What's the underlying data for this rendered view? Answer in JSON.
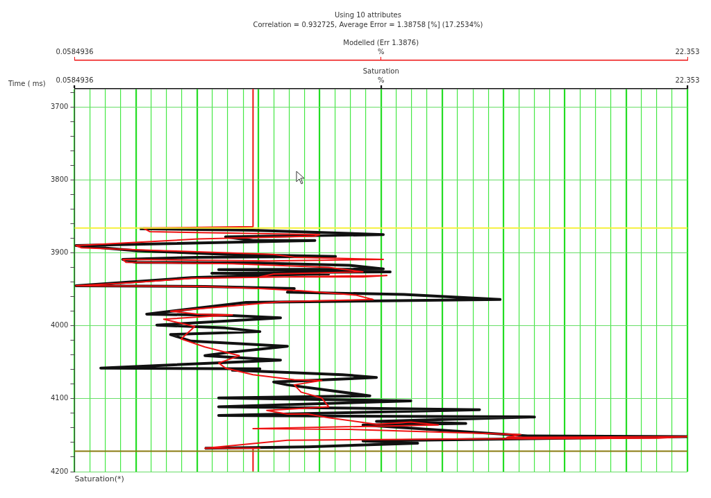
{
  "chart_data": {
    "type": "line",
    "title": "Using 10 attributes",
    "subtitle": "Correlation = 0.932725, Average Error = 1.38758 [%] (17.2534%)",
    "xlabel": "Saturation",
    "ylabel": "Time ( ms)",
    "x2label": "Modelled (Err 1.3876)",
    "annotations": [
      "Saturation(*)"
    ],
    "xlim": [
      0.0584936,
      22.353
    ],
    "x2lim": [
      0.0584936,
      22.353
    ],
    "xticks": [
      0.0584936,
      {
        "value": 0.616,
        "label": null
      },
      {
        "value": 1.173,
        "label": null
      },
      {
        "value": 1.731,
        "label": null
      },
      {
        "value": 2.288,
        "label": null
      },
      {
        "value": 2.845,
        "label": null
      },
      {
        "value": 3.403,
        "label": null
      },
      {
        "value": 3.96,
        "label": null
      },
      {
        "value": 4.518,
        "label": null
      },
      {
        "value": 5.075,
        "label": null
      },
      {
        "value": 5.632,
        "label": null
      },
      {
        "value": 6.19,
        "label": null
      },
      {
        "value": 6.747,
        "label": null
      },
      {
        "value": 7.304,
        "label": null
      },
      {
        "value": 7.862,
        "label": null
      },
      {
        "value": 8.419,
        "label": null
      },
      {
        "value": 8.977,
        "label": null
      },
      {
        "value": 9.534,
        "label": null
      },
      {
        "value": 10.091,
        "label": null
      },
      {
        "value": 10.649,
        "label": null
      },
      {
        "value": 11.206,
        "label": "%"
      },
      {
        "value": 11.763,
        "label": null
      },
      {
        "value": 12.321,
        "label": null
      },
      {
        "value": 12.878,
        "label": null
      },
      {
        "value": 13.436,
        "label": null
      },
      {
        "value": 13.993,
        "label": null
      },
      {
        "value": 14.55,
        "label": null
      },
      {
        "value": 15.108,
        "label": null
      },
      {
        "value": 15.665,
        "label": null
      },
      {
        "value": 16.222,
        "label": null
      },
      {
        "value": 16.78,
        "label": null
      },
      {
        "value": 17.337,
        "label": null
      },
      {
        "value": 17.895,
        "label": null
      },
      {
        "value": 18.452,
        "label": null
      },
      {
        "value": 19.009,
        "label": null
      },
      {
        "value": 19.567,
        "label": null
      },
      {
        "value": 20.124,
        "label": null
      },
      {
        "value": 20.681,
        "label": null
      },
      {
        "value": 21.239,
        "label": null
      },
      {
        "value": 21.796,
        "label": null
      },
      22.353
    ],
    "x2ticks": [
      0.0584936,
      {
        "value": 11.206,
        "label": "%"
      },
      22.353
    ],
    "ylim": [
      4200,
      3675
    ],
    "yticks": [
      {
        "value": 3680,
        "label": null
      },
      3700,
      {
        "value": 3720,
        "label": null
      },
      {
        "value": 3740,
        "label": null
      },
      {
        "value": 3760,
        "label": null
      },
      {
        "value": 3780,
        "label": null
      },
      3800,
      {
        "value": 3820,
        "label": null
      },
      {
        "value": 3840,
        "label": null
      },
      {
        "value": 3860,
        "label": null
      },
      {
        "value": 3880,
        "label": null
      },
      3900,
      {
        "value": 3920,
        "label": null
      },
      {
        "value": 3940,
        "label": null
      },
      {
        "value": 3960,
        "label": null
      },
      {
        "value": 3980,
        "label": null
      },
      4000,
      {
        "value": 4020,
        "label": null
      },
      {
        "value": 4040,
        "label": null
      },
      {
        "value": 4060,
        "label": null
      },
      {
        "value": 4080,
        "label": null
      },
      4100,
      {
        "value": 4120,
        "label": null
      },
      {
        "value": 4140,
        "label": null
      },
      {
        "value": 4160,
        "label": null
      },
      {
        "value": 4180,
        "label": null
      },
      4200
    ],
    "grid": true,
    "ref_lines": [
      {
        "axis": "y",
        "value": 3866,
        "color": "#f5f03a"
      },
      {
        "axis": "y",
        "value": 4172,
        "color": "#8a7a10"
      }
    ],
    "series": [
      {
        "color": "#111111",
        "x": [
          2.43,
          6.55,
          11.29,
          5.55,
          6.55,
          8.8,
          0.11,
          2.31,
          5.55,
          9.55,
          4.55,
          1.81,
          2.31,
          6.8,
          10.05,
          11.29,
          5.3,
          11.54,
          5.05,
          9.3,
          7.8,
          4.3,
          0.11,
          4.8,
          8.05,
          7.8,
          12.04,
          15.54,
          6.3,
          2.68,
          5.8,
          7.55,
          3.05,
          5.55,
          6.8,
          3.55,
          4.3,
          7.8,
          5.55,
          4.8,
          7.55,
          1.01,
          6.8,
          5.8,
          9.8,
          11.04,
          7.3,
          7.8,
          10.8,
          5.3,
          12.29,
          5.3,
          14.79,
          5.3,
          16.79,
          11.04,
          14.29,
          10.55,
          15.79,
          16.54,
          22.35,
          10.55,
          12.54,
          8.55,
          4.8
        ],
        "values": [
          3867,
          3869,
          3875,
          3878,
          3883,
          3883,
          3890,
          3897,
          3902,
          3905,
          3906,
          3909,
          3913,
          3914,
          3917,
          3922,
          3923,
          3926,
          3928,
          3929,
          3930,
          3934,
          3945,
          3946,
          3949,
          3954,
          3957,
          3964,
          3968,
          3984,
          3986,
          3989,
          3999,
          4003,
          4008,
          4012,
          4021,
          4028,
          4037,
          4041,
          4047,
          4058,
          4059,
          4061,
          4067,
          4071,
          4077,
          4081,
          4096,
          4099,
          4103,
          4111,
          4115,
          4123,
          4125,
          4131,
          4134,
          4136,
          4149,
          4151,
          4152,
          4158,
          4161,
          4166,
          4168
        ]
      },
      {
        "color": "#ee1111",
        "axis": "x2",
        "x": [
          6.55,
          6.55,
          2.56,
          2.8,
          8.97,
          8.8,
          4.55,
          0.11,
          0.31,
          3.3,
          7.3,
          8.05,
          11.29,
          7.17,
          1.81,
          1.93,
          5.8,
          9.3,
          10.55,
          7.3,
          6.8,
          10.55,
          11.42,
          4.3,
          2.06,
          0.11,
          4.8,
          6.8,
          8.3,
          10.3,
          10.92,
          7.55,
          4.8,
          3.55,
          4.55,
          5.8,
          3.3,
          4.43,
          3.93,
          4.8,
          6.05,
          5.3,
          5.55,
          6.55,
          8.05,
          9.05,
          8.05,
          8.3,
          9.05,
          9.3,
          7.05,
          7.8,
          8.55,
          9.3,
          11.04,
          12.29,
          13.29,
          6.55,
          10.05,
          16.29,
          15.79,
          22.35,
          21.28,
          14.79,
          7.8,
          4.8,
          6.8,
          6.55,
          6.55
        ],
        "values": [
          3676,
          3864,
          3866,
          3871,
          3875,
          3877,
          3881,
          3890,
          3893,
          3897,
          3902,
          3906,
          3909,
          3911,
          3909,
          3913,
          3915,
          3920,
          3926,
          3929,
          3933,
          3933,
          3931,
          3935,
          3941,
          3945,
          3946,
          3949,
          3952,
          3958,
          3964,
          3967,
          3976,
          3980,
          3984,
          3985,
          3991,
          4001,
          4018,
          4029,
          4041,
          4051,
          4058,
          4067,
          4074,
          4075,
          4081,
          4091,
          4099,
          4111,
          4116,
          4121,
          4121,
          4126,
          4135,
          4132,
          4136,
          4141,
          4142,
          4149,
          4153,
          4152,
          4154,
          4155,
          4157,
          4168,
          4168,
          4168,
          4199
        ]
      }
    ]
  }
}
